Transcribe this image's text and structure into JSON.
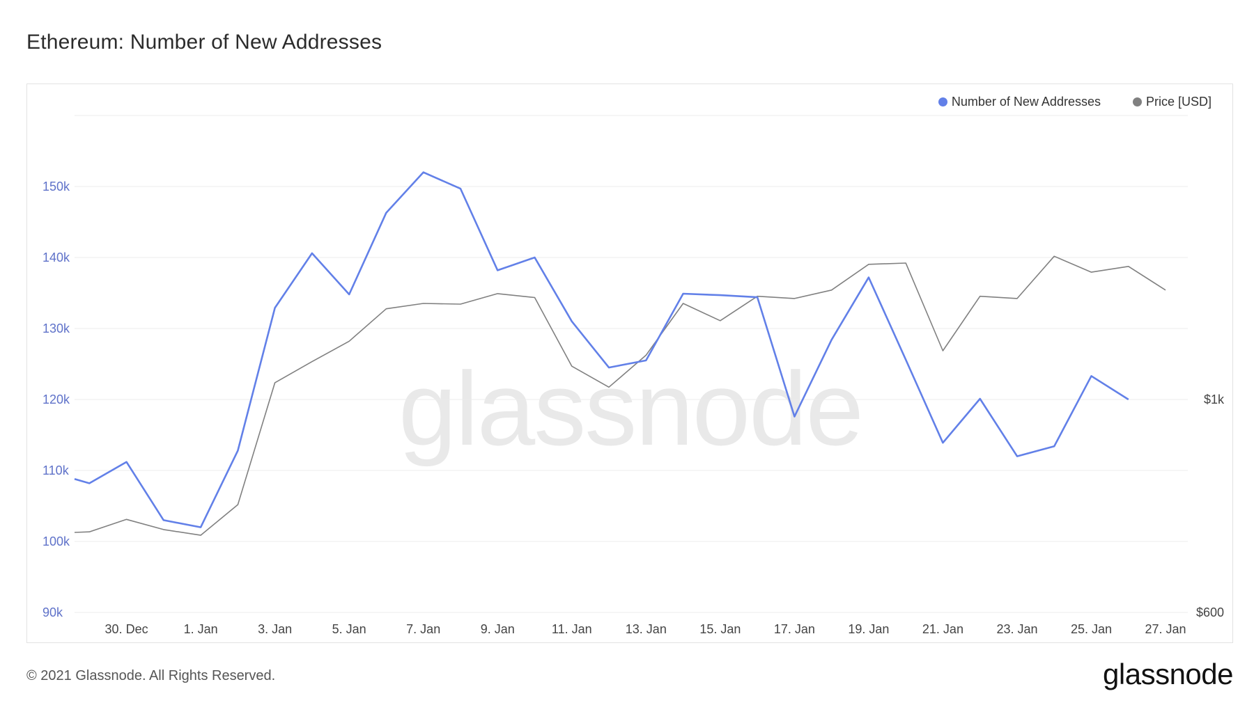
{
  "title": "Ethereum: Number of New Addresses",
  "footer": {
    "copyright": "© 2021 Glassnode. All Rights Reserved.",
    "logo": "glassnode"
  },
  "watermark": "glassnode",
  "colors": {
    "addresses": "#6280e8",
    "price": "#808080",
    "left_axis_text": "#5f72c9",
    "grid": "#ececec"
  },
  "chart_data": {
    "type": "line",
    "x_ticks": [
      "30. Dec",
      "1. Jan",
      "3. Jan",
      "5. Jan",
      "7. Jan",
      "9. Jan",
      "11. Jan",
      "13. Jan",
      "15. Jan",
      "17. Jan",
      "19. Jan",
      "21. Jan",
      "23. Jan",
      "25. Jan",
      "27. Jan"
    ],
    "y_left_ticks": [
      "90k",
      "100k",
      "110k",
      "120k",
      "130k",
      "140k",
      "150k"
    ],
    "y_left_tick_values": [
      90000,
      100000,
      110000,
      120000,
      130000,
      140000,
      150000
    ],
    "y_left_range": [
      90000,
      160000
    ],
    "y_right_ticks": [
      "$600",
      "$1k"
    ],
    "y_right_tick_values": [
      600,
      1000
    ],
    "legend_position": "top-right",
    "grid": true,
    "series": [
      {
        "name": "Number of New Addresses",
        "axis": "left",
        "x": [
          -1.4,
          -1,
          0,
          1,
          2,
          3,
          4,
          5,
          6,
          7,
          8,
          9,
          10,
          11,
          12,
          13,
          14,
          15,
          16,
          17,
          18,
          19,
          20,
          21,
          22,
          23,
          24,
          25,
          26,
          27
        ],
        "values": [
          108800,
          108200,
          111200,
          103000,
          102000,
          112800,
          132900,
          140600,
          134800,
          146300,
          152000,
          149700,
          138200,
          140000,
          131000,
          124500,
          125500,
          134900,
          134700,
          134400,
          117600,
          128400,
          137200,
          125600,
          113900,
          120100,
          112000,
          113400,
          123300,
          120000
        ]
      },
      {
        "name": "Price [USD]",
        "axis": "right",
        "x": [
          -1.4,
          -1,
          0,
          1,
          2,
          3,
          4,
          5,
          6,
          7,
          8,
          9,
          10,
          11,
          12,
          13,
          14,
          15,
          16,
          17,
          18,
          19,
          20,
          21,
          22,
          23,
          24,
          25,
          26,
          27,
          28
        ],
        "values": [
          727,
          728,
          750,
          732,
          722,
          777,
          1041,
          1095,
          1150,
          1243,
          1259,
          1257,
          1289,
          1277,
          1083,
          1030,
          1112,
          1259,
          1208,
          1281,
          1274,
          1300,
          1383,
          1387,
          1124,
          1281,
          1274,
          1410,
          1357,
          1376,
          1300
        ]
      }
    ]
  }
}
